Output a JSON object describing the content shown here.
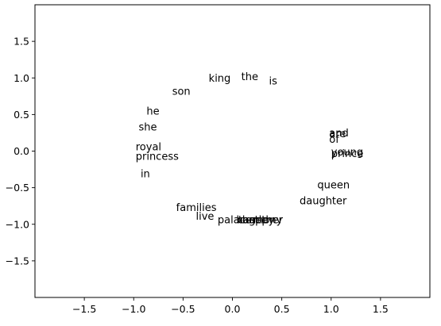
{
  "chart_data": {
    "type": "scatter",
    "title": "",
    "xlabel": "",
    "ylabel": "",
    "xlim": [
      -2.0,
      2.0
    ],
    "ylim": [
      -2.0,
      2.0
    ],
    "grid": false,
    "x_ticks": [
      -1.5,
      -1.0,
      -0.5,
      0.0,
      0.5,
      1.0,
      1.5
    ],
    "y_ticks": [
      -1.5,
      -1.0,
      -0.5,
      0.0,
      0.5,
      1.0,
      1.5
    ],
    "x_tick_labels": [
      "−1.5",
      "−1.0",
      "−0.5",
      "0.0",
      "0.5",
      "1.0",
      "1.5"
    ],
    "y_tick_labels": [
      "−1.5",
      "−1.0",
      "−0.5",
      "0.0",
      "0.5",
      "1.0",
      "1.5"
    ],
    "points": [
      {
        "label": "king",
        "x": -0.24,
        "y": 1.0
      },
      {
        "label": "the",
        "x": 0.09,
        "y": 1.02
      },
      {
        "label": "is",
        "x": 0.37,
        "y": 0.96
      },
      {
        "label": "son",
        "x": -0.61,
        "y": 0.82
      },
      {
        "label": "he",
        "x": -0.87,
        "y": 0.55
      },
      {
        "label": "she",
        "x": -0.95,
        "y": 0.33
      },
      {
        "label": "royal",
        "x": -0.98,
        "y": 0.06
      },
      {
        "label": "princess",
        "x": -0.98,
        "y": -0.07
      },
      {
        "label": "in",
        "x": -0.93,
        "y": -0.31
      },
      {
        "label": "and",
        "x": 0.98,
        "y": 0.25
      },
      {
        "label": "are",
        "x": 0.98,
        "y": 0.24
      },
      {
        "label": "of",
        "x": 0.98,
        "y": 0.16
      },
      {
        "label": "young",
        "x": 1.0,
        "y": -0.01
      },
      {
        "label": "prince",
        "x": 1.0,
        "y": -0.03
      },
      {
        "label": "queen",
        "x": 0.86,
        "y": -0.46
      },
      {
        "label": "daughter",
        "x": 0.68,
        "y": -0.68
      },
      {
        "label": "families",
        "x": -0.57,
        "y": -0.77
      },
      {
        "label": "live",
        "x": -0.37,
        "y": -0.89
      },
      {
        "label": "palace",
        "x": -0.15,
        "y": -0.94
      },
      {
        "label": "harmony",
        "x": 0.04,
        "y": -0.94
      },
      {
        "label": "castle",
        "x": 0.05,
        "y": -0.94
      },
      {
        "label": "together",
        "x": 0.06,
        "y": -0.94
      },
      {
        "label": "happy",
        "x": 0.1,
        "y": -0.94
      }
    ]
  }
}
